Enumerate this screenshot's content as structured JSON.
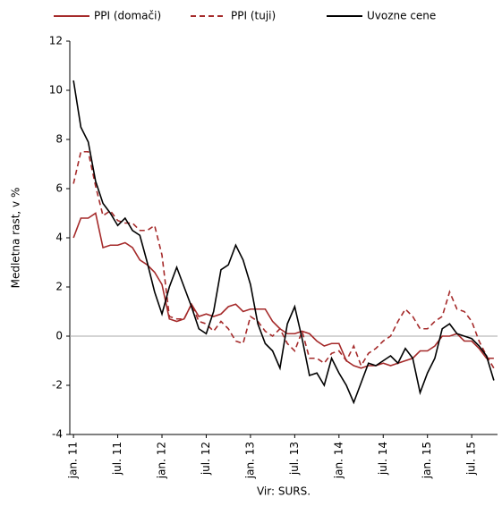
{
  "chart_data": {
    "type": "line",
    "categories": [
      "jan. 11",
      null,
      null,
      null,
      null,
      null,
      "jul. 11",
      null,
      null,
      null,
      null,
      null,
      "jan. 12",
      null,
      null,
      null,
      null,
      null,
      "jul. 12",
      null,
      null,
      null,
      null,
      null,
      "jan. 13",
      null,
      null,
      null,
      null,
      null,
      "jul. 13",
      null,
      null,
      null,
      null,
      null,
      "jan. 14",
      null,
      null,
      null,
      null,
      null,
      "jul. 14",
      null,
      null,
      null,
      null,
      null,
      "jan. 15",
      null,
      null,
      null,
      null,
      null,
      "jul. 15",
      null,
      null,
      null
    ],
    "series": [
      {
        "name": "PPI (domači)",
        "color": "#a52a2a",
        "dash": false,
        "values": [
          4.0,
          4.8,
          4.8,
          5.0,
          3.6,
          3.7,
          3.7,
          3.8,
          3.6,
          3.1,
          2.9,
          2.6,
          2.1,
          0.7,
          0.6,
          0.7,
          1.3,
          0.8,
          0.9,
          0.8,
          0.9,
          1.2,
          1.3,
          1.0,
          1.1,
          1.1,
          1.1,
          0.6,
          0.3,
          0.1,
          0.1,
          0.2,
          0.1,
          -0.2,
          -0.4,
          -0.3,
          -0.3,
          -1.0,
          -1.2,
          -1.3,
          -1.2,
          -1.2,
          -1.1,
          -1.2,
          -1.1,
          -1.0,
          -0.9,
          -0.6,
          -0.6,
          -0.4,
          0.0,
          0.0,
          0.1,
          -0.2,
          -0.2,
          -0.5,
          -0.9,
          -0.9
        ]
      },
      {
        "name": "PPI (tuji)",
        "color": "#a52a2a",
        "dash": true,
        "values": [
          6.2,
          7.5,
          7.5,
          6.1,
          4.9,
          5.1,
          4.7,
          4.6,
          4.6,
          4.3,
          4.3,
          4.5,
          3.3,
          0.8,
          0.7,
          0.7,
          1.3,
          0.6,
          0.5,
          0.2,
          0.6,
          0.3,
          -0.2,
          -0.3,
          0.8,
          0.6,
          0.2,
          0.0,
          0.3,
          -0.3,
          -0.6,
          0.2,
          -0.9,
          -0.9,
          -1.1,
          -0.7,
          -0.6,
          -1.0,
          -0.4,
          -1.2,
          -0.7,
          -0.5,
          -0.2,
          0.0,
          0.6,
          1.1,
          0.8,
          0.3,
          0.3,
          0.6,
          0.8,
          1.8,
          1.1,
          1.0,
          0.6,
          -0.2,
          -0.8,
          -1.3
        ]
      },
      {
        "name": "Uvozne cene",
        "color": "#000000",
        "dash": false,
        "values": [
          10.4,
          8.5,
          7.9,
          6.3,
          5.4,
          5.0,
          4.5,
          4.8,
          4.3,
          4.1,
          3.0,
          1.8,
          0.9,
          2.0,
          2.8,
          2.0,
          1.2,
          0.3,
          0.1,
          1.0,
          2.7,
          2.9,
          3.7,
          3.1,
          2.1,
          0.5,
          -0.3,
          -0.6,
          -1.3,
          0.5,
          1.2,
          -0.1,
          -1.6,
          -1.5,
          -2.0,
          -0.9,
          -1.5,
          -2.0,
          -2.7,
          -1.9,
          -1.1,
          -1.2,
          -1.0,
          -0.8,
          -1.1,
          -0.5,
          -0.9,
          -2.3,
          -1.5,
          -0.9,
          0.3,
          0.5,
          0.1,
          0.0,
          -0.1,
          -0.4,
          -0.8,
          -1.8
        ]
      }
    ],
    "ylabel": "Medletna rast, v %",
    "note": "Vir: SURS.",
    "ylim": [
      -4,
      12
    ],
    "yticks": [
      -4,
      -2,
      0,
      2,
      4,
      6,
      8,
      10,
      12
    ]
  }
}
